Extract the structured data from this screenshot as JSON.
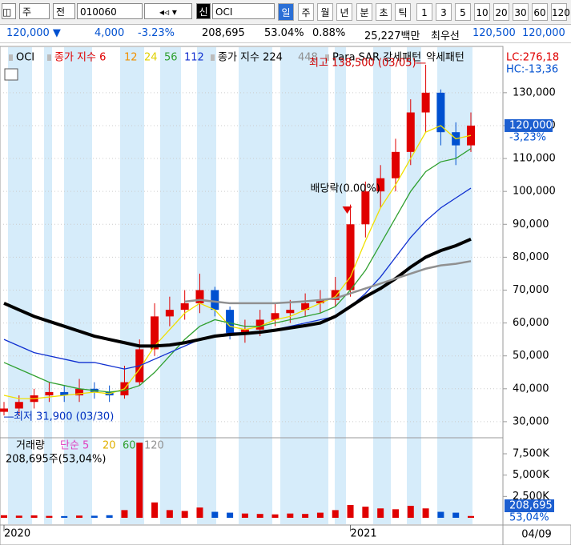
{
  "toolbar": {
    "type_button": "주",
    "mode_button": "전",
    "code": "010060",
    "badge": "신",
    "name": "OCI",
    "periods": [
      "일",
      "주",
      "월",
      "년",
      "분",
      "초",
      "틱",
      "1",
      "3",
      "5",
      "10",
      "20",
      "30",
      "60",
      "120"
    ]
  },
  "info": {
    "price": "120,000 ▼",
    "change": "4,000",
    "change_rate": "-3.23%",
    "volume": "208,695",
    "volume_rate": "53.04%",
    "turnover_rate": "0.88%",
    "amount": "25,227백만",
    "best_label": "최우선",
    "ask": "120,500",
    "bid": "120,000"
  },
  "date_box": "04/09",
  "chart_data": [
    {
      "type": "candlestick",
      "categories": [
        "2020",
        null,
        null,
        null,
        null,
        null,
        null,
        null,
        null,
        null,
        null,
        null,
        null,
        null,
        null,
        null,
        null,
        null,
        null,
        null,
        null,
        null,
        null,
        "2021",
        null,
        null,
        null,
        null,
        null,
        null,
        null,
        null
      ],
      "open": [
        33000,
        34000,
        36000,
        38000,
        39000,
        38000,
        40000,
        39000,
        38000,
        42000,
        52000,
        62000,
        64000,
        66000,
        70000,
        64000,
        57000,
        58000,
        61000,
        63000,
        64000,
        66000,
        67000,
        70000,
        90000,
        100000,
        104000,
        112000,
        124000,
        130000,
        118000,
        114000
      ],
      "high": [
        36000,
        38000,
        40000,
        42000,
        41000,
        43000,
        42000,
        41000,
        47000,
        55000,
        66000,
        68000,
        70000,
        75000,
        71000,
        65000,
        61000,
        64000,
        66000,
        67000,
        69000,
        70000,
        74000,
        96000,
        103000,
        108000,
        116000,
        128000,
        138500,
        131000,
        121000,
        124000
      ],
      "low": [
        31900,
        32000,
        34000,
        36000,
        36000,
        36000,
        37000,
        36000,
        37000,
        41000,
        50000,
        59000,
        61000,
        63000,
        62000,
        55000,
        54000,
        56000,
        59000,
        60000,
        62000,
        63000,
        65000,
        68000,
        86000,
        95000,
        100000,
        108000,
        118000,
        114000,
        108000,
        112000
      ],
      "close": [
        34000,
        36000,
        38000,
        39000,
        38000,
        40000,
        39000,
        38000,
        42000,
        52000,
        62000,
        64000,
        66000,
        70000,
        64000,
        57000,
        58000,
        61000,
        63000,
        64000,
        66000,
        67000,
        70000,
        90000,
        100000,
        104000,
        112000,
        124000,
        130000,
        118000,
        114000,
        120000
      ],
      "up_color": "#e00000",
      "down_color": "#0050d0",
      "series": [
        {
          "color": "#f0e000",
          "values": [
            38000,
            37000,
            37000,
            37500,
            38000,
            38500,
            39000,
            38500,
            40000,
            46000,
            53000,
            58000,
            63000,
            66000,
            64000,
            59000,
            58000,
            59000,
            61000,
            62000,
            64000,
            66000,
            68000,
            74000,
            85000,
            95000,
            102000,
            110000,
            118000,
            120000,
            116000,
            117000
          ]
        },
        {
          "color": "#30a030",
          "values": [
            48000,
            46000,
            44000,
            42000,
            41000,
            40000,
            39500,
            39000,
            39500,
            41000,
            45000,
            50000,
            55000,
            59000,
            61000,
            60000,
            59000,
            59000,
            60000,
            61000,
            62000,
            63000,
            65000,
            70000,
            76000,
            84000,
            92000,
            100000,
            106000,
            109000,
            110000,
            113000
          ]
        },
        {
          "color": "#1030d0",
          "values": [
            55000,
            53000,
            51000,
            50000,
            49000,
            48000,
            48000,
            47000,
            46000,
            47000,
            49000,
            51000,
            53000,
            55000,
            56000,
            57000,
            57000,
            57000,
            58000,
            59000,
            60000,
            61000,
            62000,
            65000,
            69000,
            74000,
            80000,
            86000,
            91000,
            95000,
            98000,
            101000
          ]
        },
        {
          "color": "#000000",
          "width": 4,
          "values": [
            66000,
            64000,
            62000,
            60500,
            59000,
            57500,
            56000,
            55000,
            54000,
            53000,
            53000,
            53300,
            54000,
            55000,
            56000,
            56500,
            56800,
            57200,
            57800,
            58500,
            59200,
            60000,
            62000,
            65000,
            68000,
            70500,
            73500,
            77000,
            80000,
            82000,
            83500,
            85500
          ]
        },
        {
          "color": "#909090",
          "width": 2.5,
          "values": [
            null,
            null,
            null,
            null,
            null,
            null,
            null,
            null,
            null,
            null,
            null,
            null,
            66500,
            67000,
            66500,
            66000,
            66000,
            66000,
            66000,
            66300,
            66600,
            67000,
            67500,
            69000,
            70500,
            72000,
            73500,
            75000,
            76500,
            77500,
            78000,
            78800
          ]
        }
      ],
      "legend": [
        {
          "text": "OCI",
          "color": "#000000"
        },
        {
          "text": "종가 지수 6",
          "color": "#e00000"
        },
        {
          "text": "12",
          "color": "#f09000"
        },
        {
          "text": "24",
          "color": "#e0d000"
        },
        {
          "text": "56",
          "color": "#30a030"
        },
        {
          "text": "112",
          "color": "#1030d0"
        },
        {
          "text": "종가 지수 224",
          "color": "#000000"
        },
        {
          "text": "448",
          "color": "#909090"
        },
        {
          "text": "Para SAR 강세패턴",
          "color": "#000000"
        },
        {
          "text": "약세패턴",
          "color": "#000000"
        }
      ],
      "high_label": "최고 138,500 (03/05)",
      "low_label": "최저 31,900 (03/30)",
      "dividend_label": "배당락(0.00%)",
      "lc_label": "LC:276,18",
      "hc_label": "HC:-13,36",
      "last_label": "120,000",
      "last_rate": "-3,23%",
      "ylim": [
        25600,
        143100
      ],
      "grid": true,
      "yticks": [
        {
          "value": 30000,
          "label": "30,000"
        },
        {
          "value": 40000,
          "label": "40,000"
        },
        {
          "value": 50000,
          "label": "50,000"
        },
        {
          "value": 60000,
          "label": "60,000"
        },
        {
          "value": 70000,
          "label": "70,000"
        },
        {
          "value": 80000,
          "label": "80,000"
        },
        {
          "value": 90000,
          "label": "90,000"
        },
        {
          "value": 100000,
          "label": "100,000"
        },
        {
          "value": 110000,
          "label": "110,000"
        },
        {
          "value": 120000,
          "label": "120,000"
        },
        {
          "value": 130000,
          "label": "130,000"
        }
      ]
    },
    {
      "type": "bar",
      "values": [
        300000,
        250000,
        280000,
        220000,
        200000,
        260000,
        240000,
        300000,
        900000,
        8800000,
        1800000,
        900000,
        800000,
        1200000,
        700000,
        600000,
        500000,
        450000,
        400000,
        500000,
        450000,
        600000,
        900000,
        1500000,
        1300000,
        1100000,
        1000000,
        1400000,
        1100000,
        700000,
        600000,
        208695
      ],
      "legend": [
        {
          "text": "거래량",
          "color": "#000000"
        },
        {
          "text": "단순 5",
          "color": "#e040c0"
        },
        {
          "text": "20",
          "color": "#e0b000"
        },
        {
          "text": "60",
          "color": "#30a030"
        },
        {
          "text": "120",
          "color": "#909090"
        }
      ],
      "summary": "208,695주(53,04%)",
      "last_label": "208,695",
      "last_rate": "53,04%",
      "ylim": [
        0,
        9000000
      ],
      "yticks": [
        {
          "value": 2500000,
          "label": "2,500K"
        },
        {
          "value": 5000000,
          "label": "5,000K"
        },
        {
          "value": 7500000,
          "label": "7,500K"
        }
      ]
    }
  ]
}
